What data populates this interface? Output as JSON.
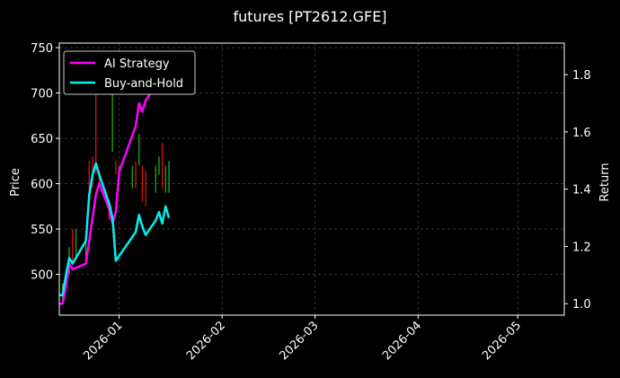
{
  "chart_data": {
    "type": "line",
    "title": "futures [PT2612.GFE]",
    "ylabel": "Price",
    "y2label": "Return",
    "xlim": [
      "2025-12-14",
      "2026-05-15"
    ],
    "ylim": [
      455,
      755
    ],
    "y2lim": [
      0.96,
      1.91
    ],
    "x_ticks": [
      "2026-01",
      "2026-02",
      "2026-03",
      "2026-04",
      "2026-05"
    ],
    "x_tick_dates": [
      "2026-01-01",
      "2026-02-01",
      "2026-03-01",
      "2026-04-01",
      "2026-05-01"
    ],
    "y_ticks": [
      500,
      550,
      600,
      650,
      700,
      750
    ],
    "y2_ticks": [
      1.0,
      1.2,
      1.4,
      1.6,
      1.8
    ],
    "grid": true,
    "legend_position": "top-left",
    "colors": {
      "background": "#000000",
      "grid": "#555555",
      "up": "#1f9e1f",
      "down": "#d01010",
      "ai_strategy": "#ff00ff",
      "buy_and_hold": "#00f0f0"
    },
    "candles": [
      {
        "date": "2025-12-15",
        "low": 470,
        "high": 490,
        "dir": "up"
      },
      {
        "date": "2025-12-16",
        "low": 485,
        "high": 505,
        "dir": "up"
      },
      {
        "date": "2025-12-17",
        "low": 500,
        "high": 530,
        "dir": "up"
      },
      {
        "date": "2025-12-18",
        "low": 510,
        "high": 550,
        "dir": "down"
      },
      {
        "date": "2025-12-19",
        "low": 520,
        "high": 550,
        "dir": "up"
      },
      {
        "date": "2025-12-22",
        "low": 515,
        "high": 540,
        "dir": "up"
      },
      {
        "date": "2025-12-23",
        "low": 590,
        "high": 625,
        "dir": "down"
      },
      {
        "date": "2025-12-24",
        "low": 595,
        "high": 630,
        "dir": "down"
      },
      {
        "date": "2025-12-25",
        "low": 610,
        "high": 700,
        "dir": "down"
      },
      {
        "date": "2025-12-26",
        "low": 600,
        "high": 615,
        "dir": "down"
      },
      {
        "date": "2025-12-29",
        "low": 560,
        "high": 580,
        "dir": "down"
      },
      {
        "date": "2025-12-30",
        "low": 635,
        "high": 705,
        "dir": "up"
      },
      {
        "date": "2025-12-31",
        "low": 610,
        "high": 625,
        "dir": "down"
      },
      {
        "date": "2026-01-01",
        "low": 605,
        "high": 620,
        "dir": "up"
      },
      {
        "date": "2026-01-05",
        "low": 595,
        "high": 620,
        "dir": "up"
      },
      {
        "date": "2026-01-06",
        "low": 595,
        "high": 625,
        "dir": "down"
      },
      {
        "date": "2026-01-07",
        "low": 620,
        "high": 655,
        "dir": "up"
      },
      {
        "date": "2026-01-08",
        "low": 580,
        "high": 620,
        "dir": "down"
      },
      {
        "date": "2026-01-09",
        "low": 575,
        "high": 615,
        "dir": "down"
      },
      {
        "date": "2026-01-12",
        "low": 590,
        "high": 620,
        "dir": "up"
      },
      {
        "date": "2026-01-13",
        "low": 610,
        "high": 630,
        "dir": "up"
      },
      {
        "date": "2026-01-14",
        "low": 595,
        "high": 645,
        "dir": "down"
      },
      {
        "date": "2026-01-15",
        "low": 590,
        "high": 620,
        "dir": "up"
      },
      {
        "date": "2026-01-16",
        "low": 590,
        "high": 625,
        "dir": "up"
      }
    ],
    "series": [
      {
        "name": "AI Strategy",
        "axis": "right",
        "points": [
          [
            "2025-12-14",
            1.0
          ],
          [
            "2025-12-15",
            1.0
          ],
          [
            "2025-12-16",
            1.06
          ],
          [
            "2025-12-17",
            1.14
          ],
          [
            "2025-12-18",
            1.12
          ],
          [
            "2025-12-22",
            1.14
          ],
          [
            "2025-12-25",
            1.38
          ],
          [
            "2025-12-26",
            1.42
          ],
          [
            "2025-12-29",
            1.33
          ],
          [
            "2025-12-30",
            1.28
          ],
          [
            "2025-12-31",
            1.32
          ],
          [
            "2026-01-01",
            1.46
          ],
          [
            "2026-01-06",
            1.62
          ],
          [
            "2026-01-07",
            1.7
          ],
          [
            "2026-01-08",
            1.67
          ],
          [
            "2026-01-09",
            1.71
          ],
          [
            "2026-01-12",
            1.76
          ],
          [
            "2026-01-15",
            1.82
          ]
        ]
      },
      {
        "name": "Buy-and-Hold",
        "axis": "right",
        "points": [
          [
            "2025-12-14",
            1.03
          ],
          [
            "2025-12-15",
            1.03
          ],
          [
            "2025-12-16",
            1.1
          ],
          [
            "2025-12-17",
            1.16
          ],
          [
            "2025-12-18",
            1.14
          ],
          [
            "2025-12-22",
            1.22
          ],
          [
            "2025-12-23",
            1.38
          ],
          [
            "2025-12-24",
            1.45
          ],
          [
            "2025-12-25",
            1.49
          ],
          [
            "2025-12-26",
            1.45
          ],
          [
            "2025-12-29",
            1.35
          ],
          [
            "2025-12-30",
            1.3
          ],
          [
            "2025-12-31",
            1.15
          ],
          [
            "2026-01-06",
            1.25
          ],
          [
            "2026-01-07",
            1.31
          ],
          [
            "2026-01-08",
            1.27
          ],
          [
            "2026-01-09",
            1.24
          ],
          [
            "2026-01-12",
            1.29
          ],
          [
            "2026-01-13",
            1.32
          ],
          [
            "2026-01-14",
            1.28
          ],
          [
            "2026-01-15",
            1.34
          ],
          [
            "2026-01-16",
            1.3
          ]
        ]
      }
    ]
  }
}
